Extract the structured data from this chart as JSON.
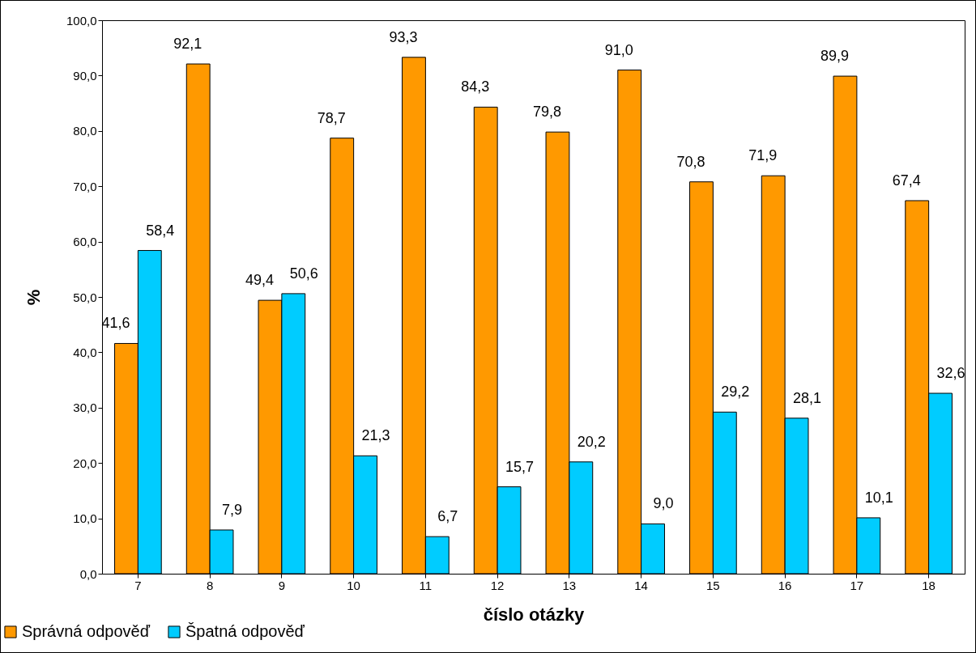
{
  "chart_data": {
    "type": "bar",
    "xlabel": "číslo otázky",
    "ylabel": "%",
    "categories": [
      "7",
      "8",
      "9",
      "10",
      "11",
      "12",
      "13",
      "14",
      "15",
      "16",
      "17",
      "18"
    ],
    "series": [
      {
        "name": "Správná odpověď",
        "color": "#ff9900",
        "values": [
          41.6,
          92.1,
          49.4,
          78.7,
          93.3,
          84.3,
          79.8,
          91.0,
          70.8,
          71.9,
          89.9,
          67.4
        ],
        "value_labels": [
          "41,6",
          "92,1",
          "49,4",
          "78,7",
          "93,3",
          "84,3",
          "79,8",
          "91,0",
          "70,8",
          "71,9",
          "89,9",
          "67,4"
        ]
      },
      {
        "name": "Špatná odpověď",
        "color": "#00ccff",
        "values": [
          58.4,
          7.9,
          50.6,
          21.3,
          6.7,
          15.7,
          20.2,
          9.0,
          29.2,
          28.1,
          10.1,
          32.6
        ],
        "value_labels": [
          "58,4",
          "7,9",
          "50,6",
          "21,3",
          "6,7",
          "15,7",
          "20,2",
          "9,0",
          "29,2",
          "28,1",
          "10,1",
          "32,6"
        ]
      }
    ],
    "ylim": [
      0,
      100
    ],
    "yticks": [
      {
        "value": 0,
        "label": "0,0"
      },
      {
        "value": 10,
        "label": "10,0"
      },
      {
        "value": 20,
        "label": "20,0"
      },
      {
        "value": 30,
        "label": "30,0"
      },
      {
        "value": 40,
        "label": "40,0"
      },
      {
        "value": 50,
        "label": "50,0"
      },
      {
        "value": 60,
        "label": "60,0"
      },
      {
        "value": 70,
        "label": "70,0"
      },
      {
        "value": 80,
        "label": "80,0"
      },
      {
        "value": 90,
        "label": "90,0"
      },
      {
        "value": 100,
        "label": "100,0"
      }
    ],
    "grid": false,
    "legend": "bottom left"
  }
}
